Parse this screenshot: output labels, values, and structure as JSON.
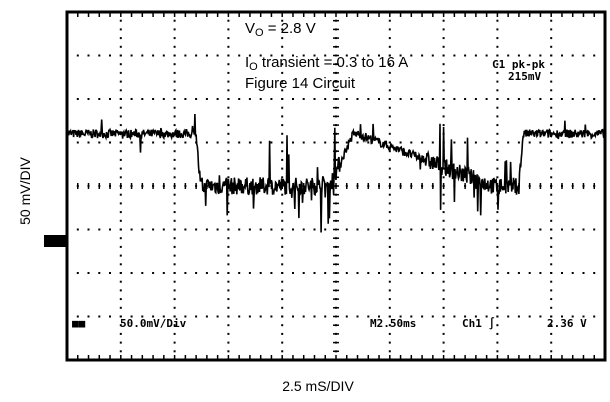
{
  "chart_data": {
    "type": "line",
    "title": "",
    "annotations": {
      "vo": {
        "main": "V",
        "sub": "O",
        "rest": " = 2.8 V"
      },
      "io": {
        "main": "I",
        "sub": "O",
        "rest": " transient = 0.3 to 16 A"
      },
      "fig": "Figure 14 Circuit"
    },
    "ylabel": "50 mV/DIV",
    "xlabel": "2.5 mS/DIV",
    "scope_readouts": {
      "ch1_pk": "C1 pk-pk",
      "ch1_pk_value": "215mV",
      "ch1_scale": "50.0mV/Div",
      "timebase": "M2.50ms",
      "trigger": "Ch1 ∫",
      "trigger_level": "2.36 V"
    },
    "x_divisions": 10,
    "y_divisions": 8,
    "xlim": [
      0,
      25
    ],
    "ylim": [
      -200,
      200
    ],
    "x_unit": "ms",
    "y_unit": "mV",
    "trace_color": "#000000",
    "series": [
      {
        "x": [
          0,
          6.0,
          6.2,
          12.2,
          13.3,
          13.5,
          19.8,
          21.0,
          21.2,
          25
        ],
        "values": [
          60,
          60,
          0,
          0,
          60,
          60,
          0,
          0,
          60,
          60
        ]
      }
    ]
  }
}
